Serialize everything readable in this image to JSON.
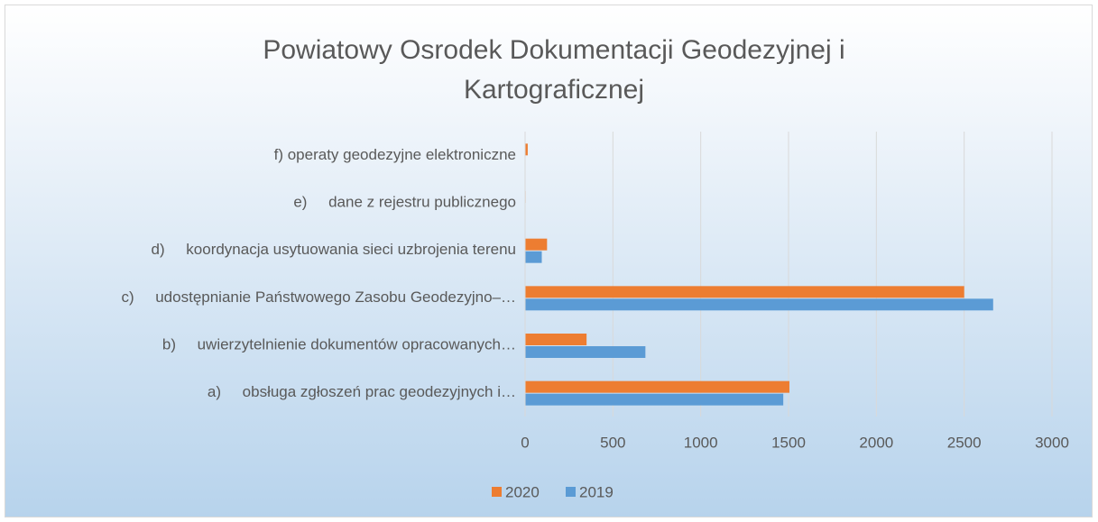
{
  "chart_data": {
    "type": "bar",
    "orientation": "horizontal",
    "title": [
      "Powiatowy Osrodek Dokumentacji Geodezyjnej i",
      "Kartograficznej"
    ],
    "categories": [
      "a)     obsługa zgłoszeń prac geodezyjnych i…",
      "b)     uwierzytelnienie dokumentów opracowanych…",
      "c)     udostępnianie Państwowego Zasobu Geodezyjno–…",
      "d)     koordynacja usytuowania sieci uzbrojenia terenu",
      "e)     dane z rejestru publicznego",
      "f) operaty geodezyjne elektroniczne"
    ],
    "series": [
      {
        "name": "2020",
        "color": "#ed7d31",
        "values": [
          1505,
          350,
          2500,
          125,
          3,
          15
        ]
      },
      {
        "name": "2019",
        "color": "#5b9bd5",
        "values": [
          1470,
          685,
          2665,
          95,
          2,
          0
        ]
      }
    ],
    "xlim": [
      0,
      3000
    ],
    "xticks": [
      0,
      500,
      1000,
      1500,
      2000,
      2500,
      3000
    ],
    "grid": true,
    "legend": "bottom"
  }
}
